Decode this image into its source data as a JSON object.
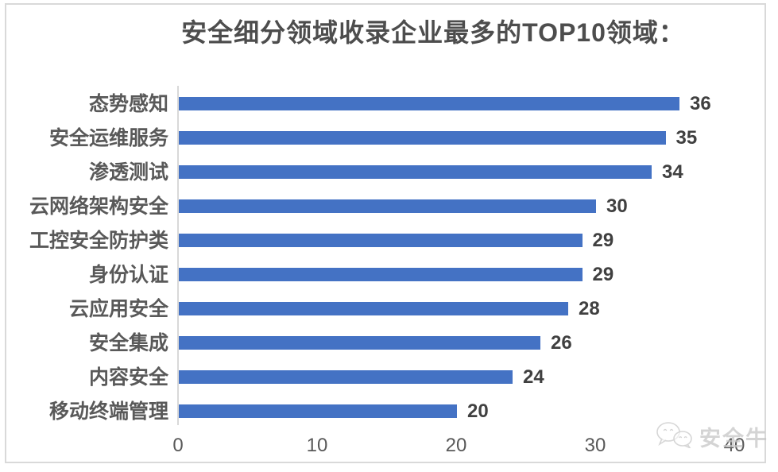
{
  "chart_data": {
    "type": "bar",
    "orientation": "horizontal",
    "title": "安全细分领域收录企业最多的TOP10领域：",
    "categories": [
      "态势感知",
      "安全运维服务",
      "渗透测试",
      "云网络架构安全",
      "工控安全防护类",
      "身份认证",
      "云应用安全",
      "安全集成",
      "内容安全",
      "移动终端管理"
    ],
    "values": [
      36,
      35,
      34,
      30,
      29,
      29,
      28,
      26,
      24,
      20
    ],
    "data_labels_shown": true,
    "xlabel": "",
    "ylabel": "",
    "xlim": [
      0,
      40
    ],
    "x_ticks": [
      "0",
      "10",
      "20",
      "30",
      "40"
    ],
    "grid": "off",
    "legend": "none",
    "bar_color": "#4472C4",
    "title_color": "#4D4D4D",
    "label_color": "#595959",
    "value_label_color": "#404040",
    "axis_line_color": "#D9D9D9",
    "frame_border_color": "#D9D9D9"
  },
  "watermark": {
    "label": "安全牛",
    "icon": "wechat-icon",
    "color": "#C6C6C6"
  }
}
